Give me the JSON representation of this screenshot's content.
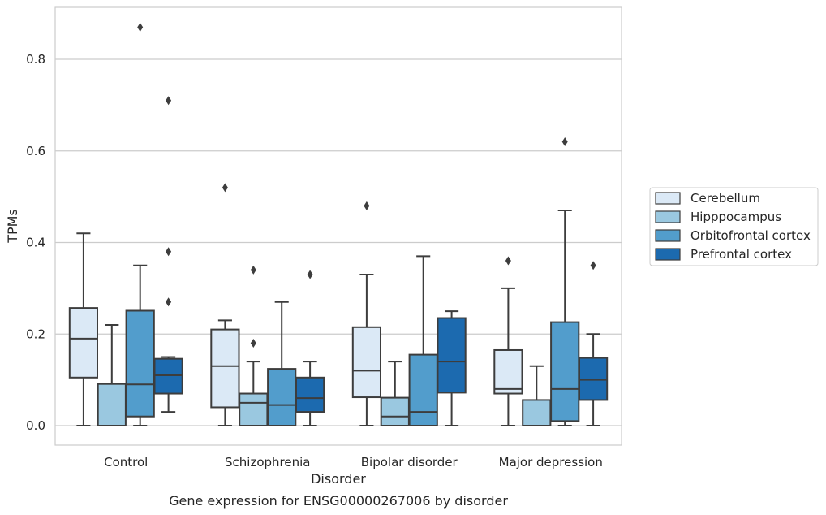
{
  "chart_data": {
    "type": "box",
    "title": "",
    "caption": "Gene expression for ENSG00000267006 by disorder",
    "xlabel": "Disorder",
    "ylabel": "TPMs",
    "ylim": [
      -0.042,
      0.92
    ],
    "yticks": [
      0.0,
      0.2,
      0.4,
      0.6,
      0.8
    ],
    "ytick_labels": [
      "0.0",
      "0.2",
      "0.4",
      "0.6",
      "0.8"
    ],
    "grid": "horizontal",
    "legend_position": "right",
    "categories": [
      "Control",
      "Schizophrenia",
      "Bipolar disorder",
      "Major depression"
    ],
    "series": [
      {
        "name": "Cerebellum",
        "color": "#dbe9f6",
        "boxes": [
          {
            "whislo": 0.0,
            "q1": 0.105,
            "med": 0.19,
            "q3": 0.257,
            "whishi": 0.42,
            "fliers": []
          },
          {
            "whislo": 0.0,
            "q1": 0.04,
            "med": 0.13,
            "q3": 0.21,
            "whishi": 0.23,
            "fliers": [
              0.52
            ]
          },
          {
            "whislo": 0.0,
            "q1": 0.062,
            "med": 0.12,
            "q3": 0.215,
            "whishi": 0.33,
            "fliers": [
              0.48
            ]
          },
          {
            "whislo": 0.0,
            "q1": 0.07,
            "med": 0.08,
            "q3": 0.165,
            "whishi": 0.3,
            "fliers": [
              0.36
            ]
          }
        ]
      },
      {
        "name": "Hipppocampus",
        "color": "#9ac8e0",
        "boxes": [
          {
            "whislo": 0.0,
            "q1": 0.0,
            "med": 0.0,
            "q3": 0.091,
            "whishi": 0.22,
            "fliers": []
          },
          {
            "whislo": 0.0,
            "q1": 0.0,
            "med": 0.05,
            "q3": 0.07,
            "whishi": 0.14,
            "fliers": [
              0.18,
              0.34
            ]
          },
          {
            "whislo": 0.0,
            "q1": 0.0,
            "med": 0.02,
            "q3": 0.061,
            "whishi": 0.14,
            "fliers": []
          },
          {
            "whislo": 0.0,
            "q1": 0.0,
            "med": 0.0,
            "q3": 0.056,
            "whishi": 0.13,
            "fliers": []
          }
        ]
      },
      {
        "name": "Orbitofrontal cortex",
        "color": "#529dcc",
        "boxes": [
          {
            "whislo": 0.0,
            "q1": 0.02,
            "med": 0.09,
            "q3": 0.251,
            "whishi": 0.35,
            "fliers": [
              0.87
            ]
          },
          {
            "whislo": 0.0,
            "q1": 0.0,
            "med": 0.045,
            "q3": 0.124,
            "whishi": 0.27,
            "fliers": []
          },
          {
            "whislo": 0.0,
            "q1": 0.0,
            "med": 0.03,
            "q3": 0.155,
            "whishi": 0.37,
            "fliers": []
          },
          {
            "whislo": 0.0,
            "q1": 0.01,
            "med": 0.08,
            "q3": 0.226,
            "whishi": 0.47,
            "fliers": [
              0.62
            ]
          }
        ]
      },
      {
        "name": "Prefrontal cortex",
        "color": "#1c6aaf",
        "boxes": [
          {
            "whislo": 0.03,
            "q1": 0.07,
            "med": 0.11,
            "q3": 0.146,
            "whishi": 0.15,
            "fliers": [
              0.71,
              0.38,
              0.27
            ]
          },
          {
            "whislo": 0.0,
            "q1": 0.03,
            "med": 0.06,
            "q3": 0.105,
            "whishi": 0.14,
            "fliers": [
              0.33
            ]
          },
          {
            "whislo": 0.0,
            "q1": 0.072,
            "med": 0.14,
            "q3": 0.235,
            "whishi": 0.25,
            "fliers": []
          },
          {
            "whislo": 0.0,
            "q1": 0.056,
            "med": 0.1,
            "q3": 0.148,
            "whishi": 0.2,
            "fliers": [
              0.35
            ]
          }
        ]
      }
    ]
  }
}
